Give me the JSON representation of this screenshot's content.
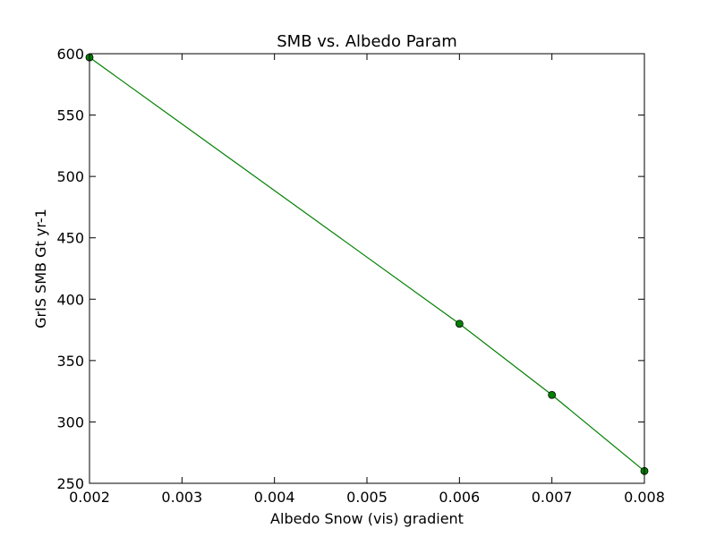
{
  "chart_data": {
    "type": "line",
    "title": "SMB vs. Albedo Param",
    "xlabel": "Albedo Snow (vis) gradient",
    "ylabel": "GrIS SMB Gt yr-1",
    "xlim": [
      0.002,
      0.008
    ],
    "ylim": [
      250,
      600
    ],
    "xticks": [
      "0.002",
      "0.003",
      "0.004",
      "0.005",
      "0.006",
      "0.007",
      "0.008"
    ],
    "yticks": [
      "250",
      "300",
      "350",
      "400",
      "450",
      "500",
      "550",
      "600"
    ],
    "grid": false,
    "series": [
      {
        "x": [
          0.002,
          0.006,
          0.007,
          0.008
        ],
        "y": [
          597,
          380,
          322,
          260
        ],
        "color": "#008000",
        "marker": "circle"
      }
    ]
  }
}
